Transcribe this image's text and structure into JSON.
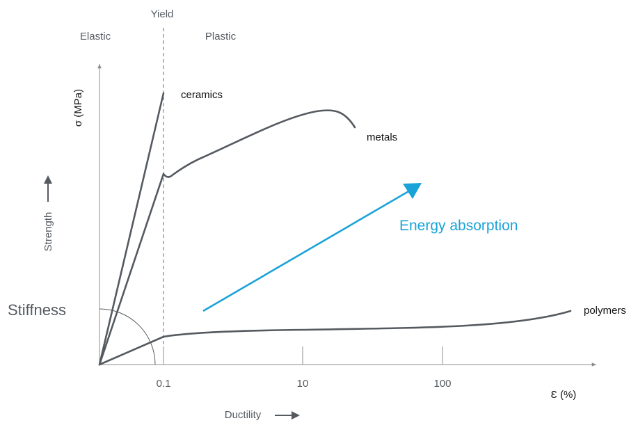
{
  "chart_data": {
    "type": "line",
    "x_scale": "log",
    "xlabel": "Ɛ (%)",
    "ylabel": "σ (MPa)",
    "x_ticks": [
      "0.1",
      "10",
      "100"
    ],
    "regions": {
      "left": "Elastic",
      "boundary": "Yield",
      "right": "Plastic"
    },
    "axis_arrows": {
      "x": "Ductility",
      "y": "Strength"
    },
    "angle_label": "Stiffness",
    "energy_label": "Energy absorption",
    "grid": false,
    "series": [
      {
        "name": "ceramics"
      },
      {
        "name": "metals"
      },
      {
        "name": "polymers"
      }
    ],
    "colors": {
      "curve": "#555a60",
      "energy_arrow": "#1aa3d9",
      "axis": "#888c90"
    }
  }
}
